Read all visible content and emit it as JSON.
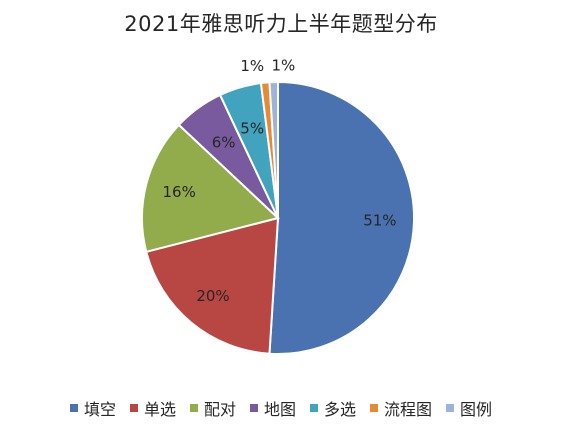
{
  "chart_data": {
    "type": "pie",
    "title": "2021年雅思听力上半年题型分布",
    "categories": [
      "填空",
      "单选",
      "配对",
      "地图",
      "多选",
      "流程图",
      "图例"
    ],
    "values": [
      51,
      20,
      16,
      6,
      5,
      1,
      1
    ],
    "labels": [
      "51%",
      "20%",
      "16%",
      "6%",
      "5%",
      "1%",
      "1%"
    ],
    "colors": [
      "#4a72b0",
      "#b84744",
      "#92ac4c",
      "#7a5a9e",
      "#41a3bd",
      "#e88a34",
      "#9db3d8"
    ],
    "legend_position": "bottom"
  }
}
